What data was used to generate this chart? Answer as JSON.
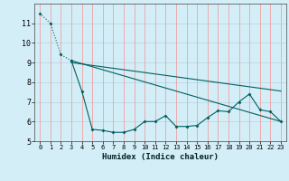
{
  "title": "",
  "xlabel": "Humidex (Indice chaleur)",
  "ylabel": "",
  "background_color": "#d4eef7",
  "grid_color_v": "#f0a0a0",
  "grid_color_h": "#b8d8e8",
  "line_color": "#006060",
  "xlim": [
    -0.5,
    23.5
  ],
  "ylim": [
    5,
    12
  ],
  "yticks": [
    5,
    6,
    7,
    8,
    9,
    10,
    11
  ],
  "xticks": [
    0,
    1,
    2,
    3,
    4,
    5,
    6,
    7,
    8,
    9,
    10,
    11,
    12,
    13,
    14,
    15,
    16,
    17,
    18,
    19,
    20,
    21,
    22,
    23
  ],
  "line1_x": [
    0,
    1,
    2,
    3
  ],
  "line1_y": [
    11.5,
    11.0,
    9.4,
    9.1
  ],
  "line2_x": [
    3,
    4,
    5,
    6,
    7,
    8,
    9,
    10,
    11,
    12,
    13,
    14,
    15,
    16,
    17,
    18,
    19,
    20,
    21,
    22,
    23
  ],
  "line2_y": [
    9.1,
    7.55,
    5.6,
    5.55,
    5.45,
    5.45,
    5.6,
    6.0,
    6.0,
    6.3,
    5.75,
    5.75,
    5.8,
    6.2,
    6.55,
    6.5,
    7.0,
    7.4,
    6.6,
    6.5,
    6.0
  ],
  "line3_x": [
    3,
    23
  ],
  "line3_y": [
    9.1,
    6.0
  ],
  "line4_x": [
    3,
    23
  ],
  "line4_y": [
    9.0,
    7.55
  ]
}
